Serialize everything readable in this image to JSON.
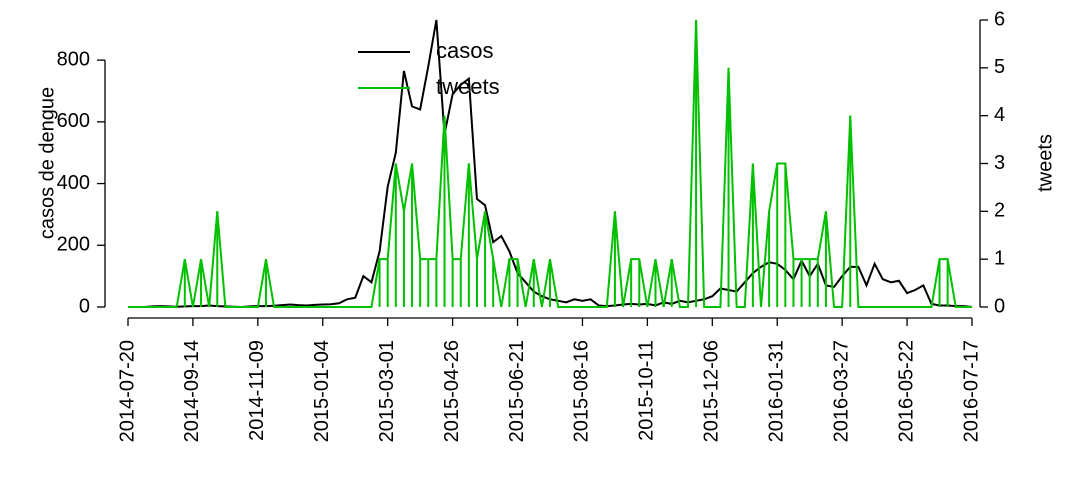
{
  "chart_data": {
    "type": "line",
    "x": [
      "2014-07-20",
      "2014-07-27",
      "2014-08-03",
      "2014-08-10",
      "2014-08-17",
      "2014-08-24",
      "2014-08-31",
      "2014-09-07",
      "2014-09-14",
      "2014-09-21",
      "2014-09-28",
      "2014-10-05",
      "2014-10-12",
      "2014-10-19",
      "2014-10-26",
      "2014-11-02",
      "2014-11-09",
      "2014-11-16",
      "2014-11-23",
      "2014-11-30",
      "2014-12-07",
      "2014-12-14",
      "2014-12-21",
      "2014-12-28",
      "2015-01-04",
      "2015-01-11",
      "2015-01-18",
      "2015-01-25",
      "2015-02-01",
      "2015-02-08",
      "2015-02-15",
      "2015-02-22",
      "2015-03-01",
      "2015-03-08",
      "2015-03-15",
      "2015-03-22",
      "2015-03-29",
      "2015-04-05",
      "2015-04-12",
      "2015-04-19",
      "2015-04-26",
      "2015-05-03",
      "2015-05-10",
      "2015-05-17",
      "2015-05-24",
      "2015-05-31",
      "2015-06-07",
      "2015-06-14",
      "2015-06-21",
      "2015-06-28",
      "2015-07-05",
      "2015-07-12",
      "2015-07-19",
      "2015-07-26",
      "2015-08-02",
      "2015-08-09",
      "2015-08-16",
      "2015-08-23",
      "2015-08-30",
      "2015-09-06",
      "2015-09-13",
      "2015-09-20",
      "2015-09-27",
      "2015-10-04",
      "2015-10-11",
      "2015-10-18",
      "2015-10-25",
      "2015-11-01",
      "2015-11-08",
      "2015-11-15",
      "2015-11-22",
      "2015-11-29",
      "2015-12-06",
      "2015-12-13",
      "2015-12-20",
      "2015-12-27",
      "2016-01-03",
      "2016-01-10",
      "2016-01-17",
      "2016-01-24",
      "2016-01-31",
      "2016-02-07",
      "2016-02-14",
      "2016-02-21",
      "2016-02-28",
      "2016-03-06",
      "2016-03-13",
      "2016-03-20",
      "2016-03-27",
      "2016-04-03",
      "2016-04-10",
      "2016-04-17",
      "2016-04-24",
      "2016-05-01",
      "2016-05-08",
      "2016-05-15",
      "2016-05-22",
      "2016-05-29",
      "2016-06-05",
      "2016-06-12",
      "2016-06-19",
      "2016-06-26",
      "2016-07-03",
      "2016-07-10",
      "2016-07-17"
    ],
    "series": [
      {
        "name": "casos",
        "color": "#000000",
        "values": [
          0,
          0,
          0,
          2,
          3,
          2,
          1,
          2,
          3,
          3,
          5,
          3,
          2,
          1,
          0,
          2,
          3,
          3,
          4,
          6,
          8,
          6,
          5,
          7,
          8,
          9,
          12,
          25,
          30,
          100,
          80,
          180,
          390,
          500,
          765,
          650,
          640,
          780,
          930,
          560,
          690,
          720,
          740,
          350,
          330,
          210,
          230,
          180,
          110,
          80,
          50,
          35,
          25,
          20,
          15,
          25,
          20,
          25,
          5,
          3,
          5,
          8,
          10,
          8,
          10,
          5,
          15,
          10,
          20,
          15,
          20,
          25,
          35,
          60,
          55,
          50,
          80,
          110,
          130,
          145,
          140,
          120,
          90,
          150,
          100,
          140,
          70,
          65,
          100,
          130,
          130,
          70,
          140,
          90,
          80,
          85,
          45,
          55,
          70,
          10,
          5,
          5,
          3,
          3,
          0
        ]
      },
      {
        "name": "tweets",
        "color": "#00c000",
        "axis": "y2",
        "values": [
          0,
          0,
          0,
          0,
          0,
          0,
          0,
          1,
          0,
          1,
          0,
          2,
          0,
          0,
          0,
          0,
          0,
          1,
          0,
          0,
          0,
          0,
          0,
          0,
          0,
          0,
          0,
          0,
          0,
          0,
          0,
          1,
          1,
          3,
          2,
          3,
          1,
          1,
          1,
          4,
          1,
          1,
          3,
          1,
          2,
          1,
          0,
          1,
          1,
          0,
          1,
          0,
          1,
          0,
          0,
          0,
          0,
          0,
          0,
          0,
          2,
          0,
          1,
          1,
          0,
          1,
          0,
          1,
          0,
          0,
          6,
          0,
          0,
          0,
          5,
          0,
          0,
          3,
          0,
          2,
          3,
          3,
          1,
          1,
          1,
          1,
          2,
          0,
          0,
          4,
          0,
          0,
          0,
          0,
          0,
          0,
          0,
          0,
          0,
          0,
          1,
          1,
          0,
          0,
          0
        ]
      }
    ],
    "xlim": [
      "2014-07-20",
      "2016-07-17"
    ],
    "xticks": [
      "2014-07-20",
      "2014-09-14",
      "2014-11-09",
      "2015-01-04",
      "2015-03-01",
      "2015-04-26",
      "2015-06-21",
      "2015-08-16",
      "2015-10-11",
      "2015-12-06",
      "2016-01-31",
      "2016-03-27",
      "2016-05-22",
      "2016-07-17"
    ],
    "ylabel": "casos de dengue",
    "ylim": [
      0,
      930
    ],
    "yticks": [
      0,
      200,
      400,
      600,
      800
    ],
    "y2label": "tweets",
    "y2lim": [
      0,
      6
    ],
    "y2ticks": [
      0,
      1,
      2,
      3,
      4,
      5,
      6
    ],
    "legend": "top"
  }
}
